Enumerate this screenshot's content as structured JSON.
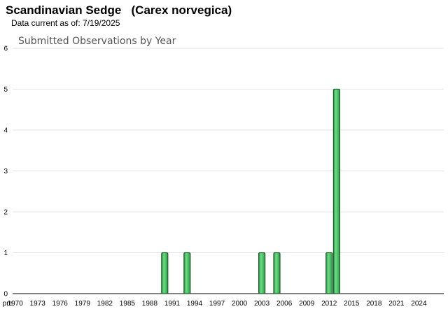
{
  "header": {
    "title": "Scandinavian Sedge   (Carex norvegica)",
    "subtitle": "Data current as of: 7/19/2025"
  },
  "chart_data": {
    "type": "bar",
    "title": "Submitted Observations by Year",
    "xlabel": "",
    "ylabel": "",
    "ylim": [
      0,
      6
    ],
    "yticks": [
      0,
      1,
      2,
      3,
      4,
      5,
      6
    ],
    "grid": true,
    "x_tick_labels": [
      "pre",
      "1970",
      "1973",
      "1976",
      "1979",
      "1982",
      "1985",
      "1988",
      "1991",
      "1994",
      "1997",
      "2000",
      "2003",
      "2006",
      "2009",
      "2012",
      "2015",
      "2018",
      "2021",
      "2024"
    ],
    "categories": [
      "1990",
      "1993",
      "2003",
      "2005",
      "2012",
      "2013"
    ],
    "values": [
      1,
      1,
      1,
      1,
      1,
      5
    ],
    "bar_color": "#3dbb5a",
    "bar_edge_color": "#1e5e2c"
  }
}
